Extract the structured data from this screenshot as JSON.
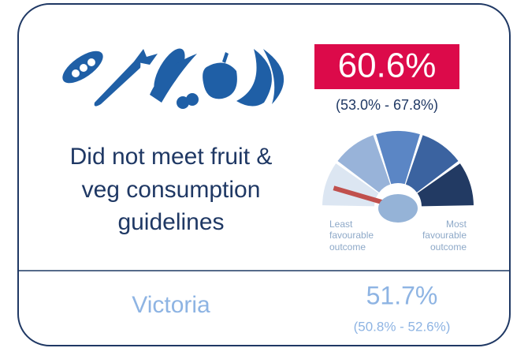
{
  "indicator": {
    "value": "60.6%",
    "ci": "(53.0% - 67.8%)",
    "label": [
      "Did not meet fruit &",
      "veg consumption",
      "guidelines"
    ]
  },
  "gauge": {
    "least": [
      "Least",
      "favourable",
      "outcome"
    ],
    "most": [
      "Most",
      "favourable",
      "outcome"
    ]
  },
  "comparison": {
    "name": "Victoria",
    "value": "51.7%",
    "ci": "(50.8% - 52.6%)"
  }
}
